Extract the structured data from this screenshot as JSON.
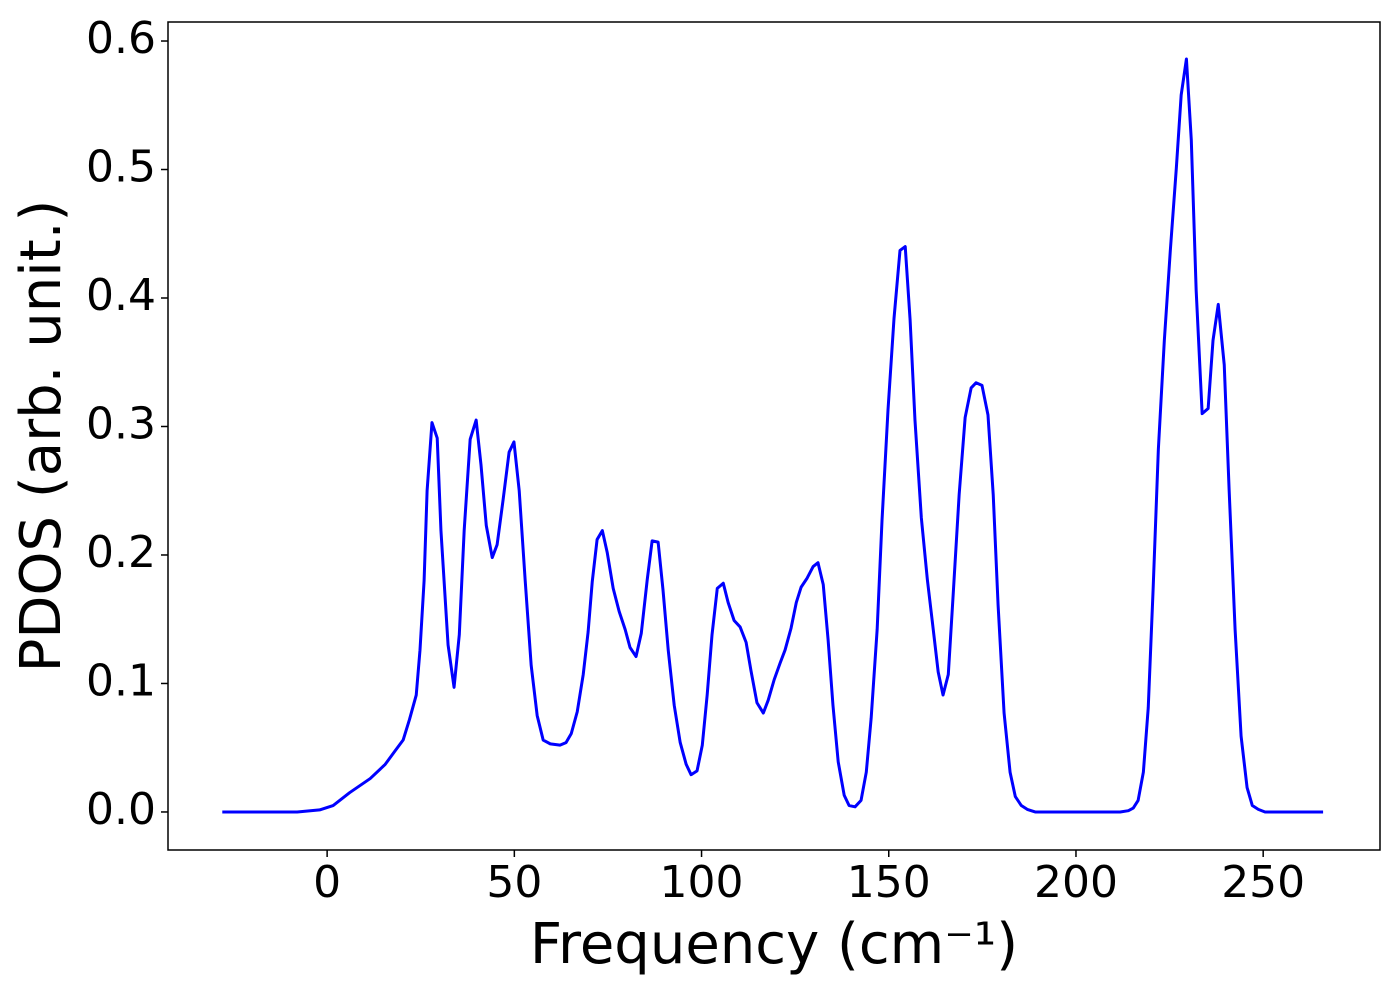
{
  "chart_data": {
    "type": "line",
    "xlabel": "Frequency (cm⁻¹)",
    "ylabel": "PDOS (arb. unit.)",
    "color": "#0000ff",
    "x": [
      -28,
      -8,
      -2,
      1.6,
      6,
      11.5,
      15.5,
      18,
      20.3,
      22,
      23.8,
      24.8,
      25.9,
      26.7,
      28,
      29.4,
      30.4,
      32.3,
      33.9,
      35.3,
      36.6,
      38.2,
      39.8,
      41.1,
      42.5,
      44.1,
      45.4,
      47,
      48.6,
      49.9,
      51.3,
      52.9,
      54.5,
      56.1,
      57.7,
      59.6,
      62.2,
      63.8,
      65.2,
      66.8,
      68.4,
      69.7,
      70.8,
      72.1,
      73.5,
      74.8,
      76.4,
      78,
      79.6,
      80.9,
      82.5,
      83.9,
      85.5,
      86.8,
      88.4,
      89.7,
      91.1,
      92.7,
      94.3,
      95.9,
      97.2,
      98.8,
      100.2,
      101.5,
      102.8,
      104.2,
      105.8,
      107.1,
      108.7,
      110.3,
      111.9,
      113.2,
      114.8,
      116.5,
      117.8,
      119.4,
      121,
      122.3,
      123.9,
      125.3,
      126.6,
      128.2,
      129.8,
      131.1,
      132.5,
      133.8,
      135.1,
      136.5,
      138.1,
      139.4,
      141,
      142.6,
      144,
      145.3,
      146.9,
      148.2,
      149.8,
      151.4,
      153,
      154.4,
      155.7,
      157,
      158.7,
      160.3,
      161.6,
      163.2,
      164.5,
      165.9,
      167.2,
      168.8,
      170.4,
      172,
      173.3,
      174.9,
      176.5,
      177.9,
      179.2,
      180.8,
      182.4,
      183.8,
      185.4,
      187,
      189.1,
      211.8,
      214,
      215.3,
      216.6,
      218,
      219.3,
      220.6,
      222,
      223.6,
      225.2,
      226.8,
      228.1,
      229.5,
      230.8,
      232.1,
      233.7,
      235.3,
      236.6,
      238,
      239.6,
      240.9,
      242.5,
      244.1,
      245.7,
      247.1,
      248.7,
      250.5,
      266
    ],
    "values": [
      0,
      0,
      0.0016,
      0.005,
      0.015,
      0.026,
      0.037,
      0.047,
      0.056,
      0.072,
      0.091,
      0.126,
      0.18,
      0.25,
      0.303,
      0.291,
      0.219,
      0.13,
      0.097,
      0.138,
      0.219,
      0.29,
      0.305,
      0.27,
      0.223,
      0.198,
      0.208,
      0.243,
      0.28,
      0.288,
      0.25,
      0.18,
      0.114,
      0.075,
      0.056,
      0.053,
      0.052,
      0.054,
      0.061,
      0.078,
      0.107,
      0.14,
      0.179,
      0.212,
      0.219,
      0.202,
      0.174,
      0.156,
      0.142,
      0.128,
      0.121,
      0.139,
      0.181,
      0.211,
      0.21,
      0.173,
      0.126,
      0.083,
      0.054,
      0.037,
      0.029,
      0.032,
      0.052,
      0.091,
      0.138,
      0.174,
      0.178,
      0.163,
      0.149,
      0.144,
      0.132,
      0.11,
      0.085,
      0.077,
      0.087,
      0.103,
      0.116,
      0.126,
      0.143,
      0.163,
      0.175,
      0.182,
      0.191,
      0.194,
      0.177,
      0.134,
      0.083,
      0.039,
      0.013,
      0.005,
      0.004,
      0.009,
      0.031,
      0.073,
      0.142,
      0.227,
      0.313,
      0.384,
      0.437,
      0.44,
      0.383,
      0.305,
      0.229,
      0.181,
      0.149,
      0.109,
      0.091,
      0.107,
      0.169,
      0.247,
      0.307,
      0.33,
      0.334,
      0.332,
      0.309,
      0.247,
      0.161,
      0.077,
      0.031,
      0.012,
      0.005,
      0.002,
      0,
      0,
      0.001,
      0.003,
      0.009,
      0.031,
      0.081,
      0.173,
      0.282,
      0.367,
      0.437,
      0.501,
      0.558,
      0.586,
      0.523,
      0.406,
      0.31,
      0.314,
      0.367,
      0.395,
      0.348,
      0.251,
      0.142,
      0.059,
      0.019,
      0.005,
      0.002,
      0,
      0
    ],
    "xlim": [
      -42.5,
      281.2
    ],
    "ylim": [
      -0.0296,
      0.6148
    ],
    "xticks": [
      0,
      50,
      100,
      150,
      200,
      250
    ],
    "yticks": [
      {
        "value": 0,
        "label": "0.0"
      },
      0.1,
      0.2,
      0.3,
      0.4,
      0.5,
      0.6
    ],
    "grid": false
  }
}
